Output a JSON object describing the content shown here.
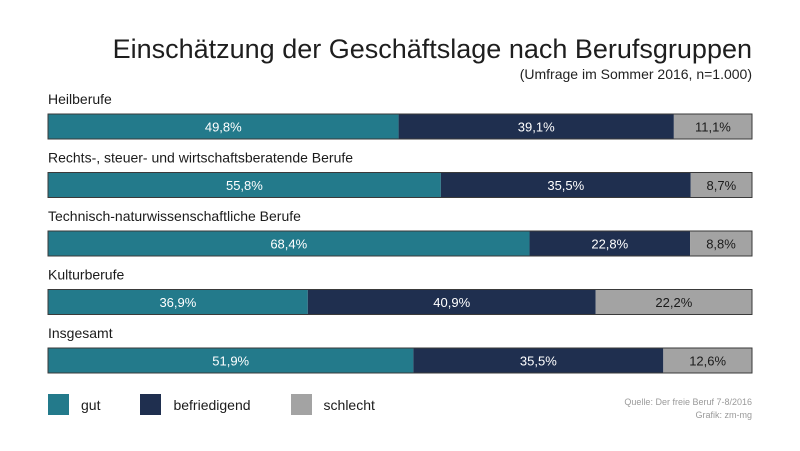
{
  "chart_data": {
    "type": "bar",
    "orientation": "horizontal",
    "stacked": true,
    "title": "Einschätzung der Geschäftslage nach Berufsgruppen",
    "subtitle": "(Umfrage im Sommer 2016, n=1.000)",
    "xlim": [
      0,
      100
    ],
    "grid": false,
    "legend_position": "bottom-left",
    "categories": [
      "Heilberufe",
      "Rechts-, steuer- und wirtschaftsberatende Berufe",
      "Technisch-naturwissenschaftliche Berufe",
      "Kulturberufe",
      "Insgesamt"
    ],
    "series": [
      {
        "name": "gut",
        "color": "#237a8b",
        "text_color": "#ffffff",
        "values": [
          49.8,
          55.8,
          68.4,
          36.9,
          51.9
        ],
        "labels": [
          "49,8%",
          "55,8%",
          "68,4%",
          "36,9%",
          "51,9%"
        ]
      },
      {
        "name": "befriedigend",
        "color": "#1f2f4f",
        "text_color": "#ffffff",
        "values": [
          39.1,
          35.5,
          22.8,
          40.9,
          35.5
        ],
        "labels": [
          "39,1%",
          "35,5%",
          "22,8%",
          "40,9%",
          "35,5%"
        ]
      },
      {
        "name": "schlecht",
        "color": "#a3a3a3",
        "text_color": "#1b1b1b",
        "values": [
          11.1,
          8.7,
          8.8,
          22.2,
          12.6
        ],
        "labels": [
          "11,1%",
          "8,7%",
          "8,8%",
          "22,2%",
          "12,6%"
        ]
      }
    ]
  },
  "source": {
    "line1": "Quelle: Der freie Beruf 7-8/2016",
    "line2": "Grafik: zm-mg"
  }
}
